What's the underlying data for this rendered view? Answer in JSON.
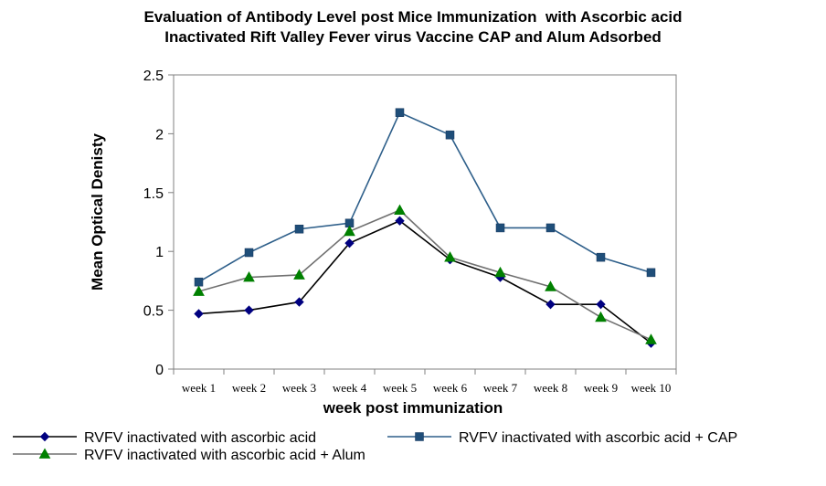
{
  "chart_data": {
    "type": "line",
    "title_lines": [
      "Evaluation of Antibody Level post Mice Immunization  with Ascorbic acid",
      "Inactivated Rift Valley Fever virus Vaccine CAP and Alum Adsorbed"
    ],
    "xlabel": "week post immunization",
    "ylabel": "Mean Optical Denisty",
    "categories": [
      "week 1",
      "week 2",
      "week 3",
      "week 4",
      "week 5",
      "week 6",
      "week 7",
      "week 8",
      "week 9",
      "week 10"
    ],
    "ylim": [
      0,
      2.5
    ],
    "yticks": [
      "0",
      "0.5",
      "1",
      "1.5",
      "2",
      "2.5"
    ],
    "grid": false,
    "legend_position": "bottom",
    "series": [
      {
        "name": "RVFV inactivated with ascorbic acid",
        "color": "#000000",
        "marker_color": "#000080",
        "marker": "diamond",
        "values": [
          0.47,
          0.5,
          0.57,
          1.07,
          1.26,
          0.93,
          0.78,
          0.55,
          0.55,
          0.22
        ]
      },
      {
        "name": "RVFV inactivated with ascorbic acid + CAP",
        "color": "#2E5F8A",
        "marker_color": "#1F4E79",
        "marker": "square",
        "values": [
          0.74,
          0.99,
          1.19,
          1.24,
          2.18,
          1.99,
          1.2,
          1.2,
          0.95,
          0.82
        ]
      },
      {
        "name": "RVFV inactivated with ascorbic acid + Alum",
        "color": "#707070",
        "marker_color": "#008000",
        "marker": "triangle",
        "values": [
          0.66,
          0.78,
          0.8,
          1.17,
          1.35,
          0.95,
          0.82,
          0.7,
          0.44,
          0.25
        ]
      }
    ]
  }
}
